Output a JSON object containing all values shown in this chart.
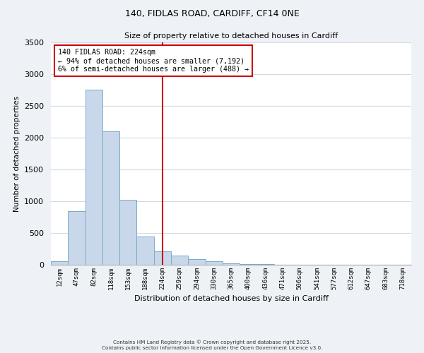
{
  "title_line1": "140, FIDLAS ROAD, CARDIFF, CF14 0NE",
  "title_line2": "Size of property relative to detached houses in Cardiff",
  "xlabel": "Distribution of detached houses by size in Cardiff",
  "ylabel": "Number of detached properties",
  "bar_color": "#c8d8ea",
  "bar_edge_color": "#7aaac8",
  "categories": [
    "12sqm",
    "47sqm",
    "82sqm",
    "118sqm",
    "153sqm",
    "188sqm",
    "224sqm",
    "259sqm",
    "294sqm",
    "330sqm",
    "365sqm",
    "400sqm",
    "436sqm",
    "471sqm",
    "506sqm",
    "541sqm",
    "577sqm",
    "612sqm",
    "647sqm",
    "683sqm",
    "718sqm"
  ],
  "values": [
    55,
    840,
    2760,
    2100,
    1020,
    450,
    215,
    145,
    90,
    55,
    25,
    15,
    8,
    3,
    0,
    0,
    0,
    0,
    0,
    0,
    0
  ],
  "ylim": [
    0,
    3500
  ],
  "yticks": [
    0,
    500,
    1000,
    1500,
    2000,
    2500,
    3000,
    3500
  ],
  "vline_x_idx": 6,
  "vline_color": "#cc0000",
  "annotation_title": "140 FIDLAS ROAD: 224sqm",
  "annotation_line1": "← 94% of detached houses are smaller (7,192)",
  "annotation_line2": "6% of semi-detached houses are larger (488) →",
  "annotation_box_color": "#ffffff",
  "annotation_box_edge_color": "#cc0000",
  "footnote1": "Contains HM Land Registry data © Crown copyright and database right 2025.",
  "footnote2": "Contains public sector information licensed under the Open Government Licence v3.0.",
  "background_color": "#eef2f7",
  "plot_background_color": "#ffffff",
  "grid_color": "#d0dae6"
}
